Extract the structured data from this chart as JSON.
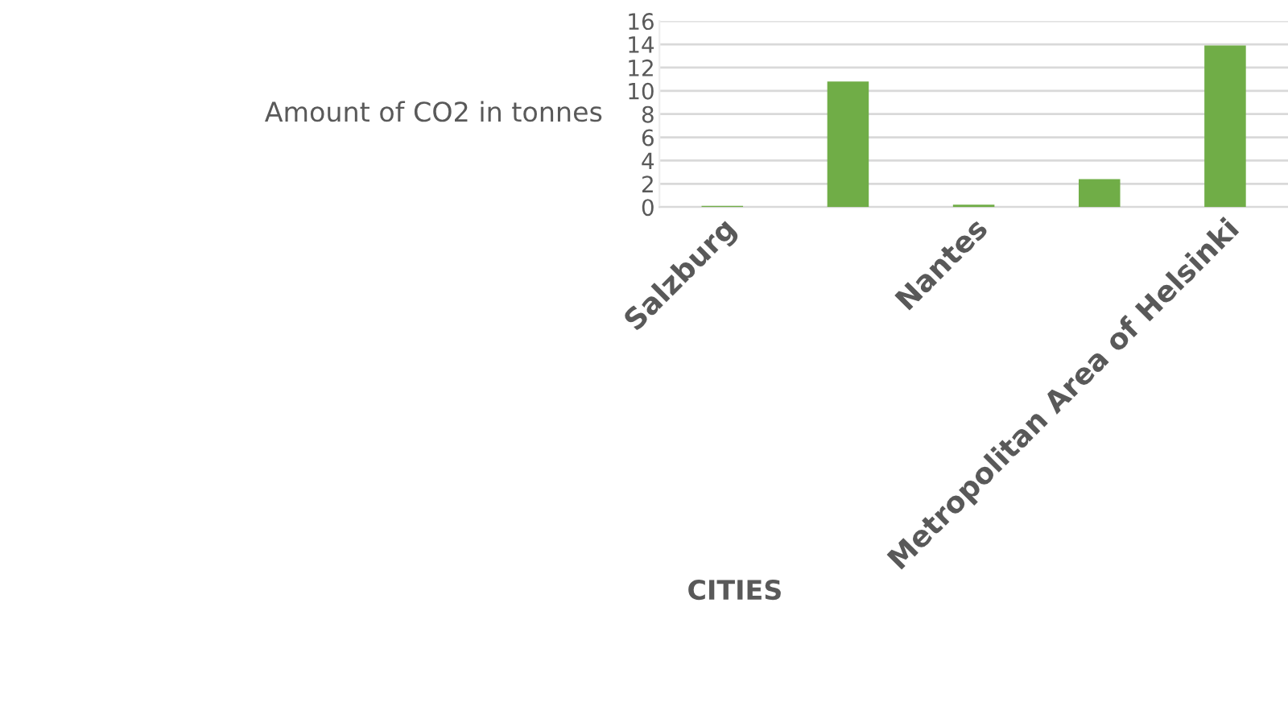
{
  "chart_data": {
    "type": "bar",
    "categories": [
      "Salzburg",
      null,
      "Nantes",
      null,
      "Metropolitan Area of Helsinki"
    ],
    "values": [
      0.1,
      10.8,
      0.2,
      2.4,
      13.9
    ],
    "color": "#70ad47",
    "xlabel": "CITIES",
    "ylabel": "Amount of CO2 in tonnes",
    "ylim": [
      0,
      16
    ],
    "yticks": [
      0,
      2,
      4,
      6,
      8,
      10,
      12,
      14,
      16
    ],
    "grid": "y"
  }
}
